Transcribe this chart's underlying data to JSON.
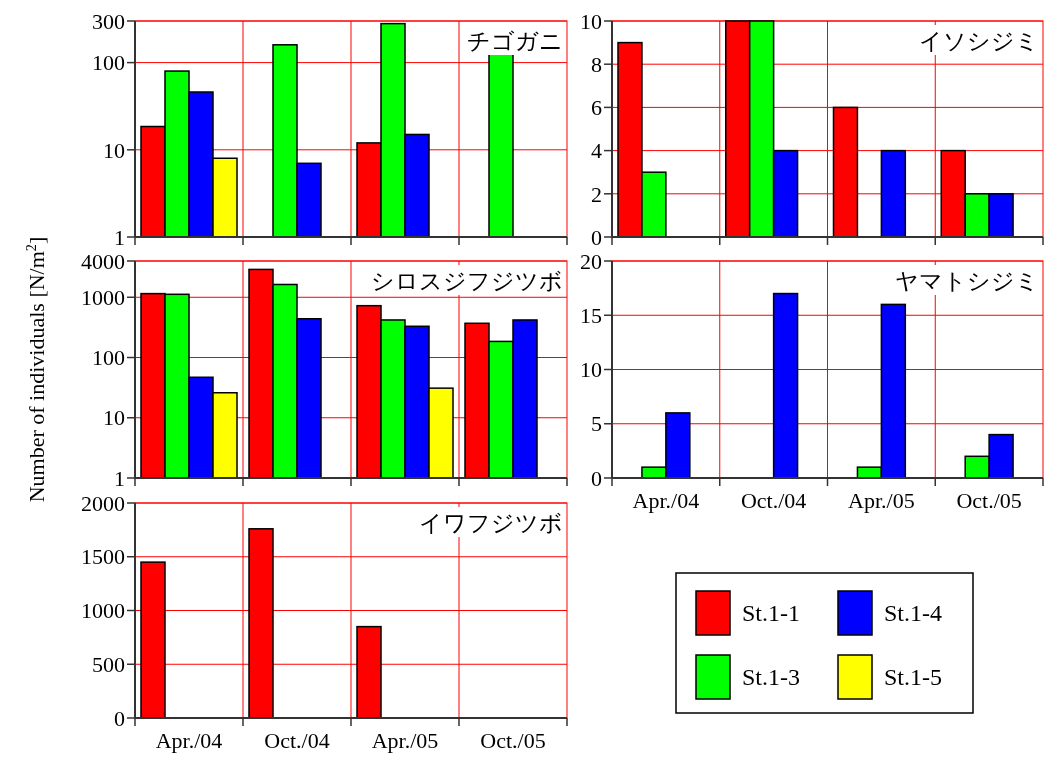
{
  "chart_data": [
    {
      "type": "bar",
      "title": "チゴガニ",
      "categories": [
        null,
        null,
        null,
        null
      ],
      "log": true,
      "ylim": [
        1,
        300
      ],
      "yticks": [
        1,
        10,
        100,
        300
      ],
      "grid": true,
      "tick_labels": "y",
      "series": [
        {
          "color": "#ff0000",
          "values": [
            18.5,
            null,
            12,
            null
          ]
        },
        {
          "color": "#00ff00",
          "values": [
            80,
            160,
            280,
            125
          ]
        },
        {
          "color": "#0000ff",
          "values": [
            46,
            7,
            15,
            null
          ]
        },
        {
          "color": "#ffff00",
          "values": [
            8,
            null,
            null,
            null
          ]
        }
      ]
    },
    {
      "type": "bar",
      "title": "イソシジミ",
      "categories": [
        null,
        null,
        null,
        null
      ],
      "ylim": [
        0,
        10
      ],
      "yticks": [
        0,
        2,
        4,
        6,
        8,
        10
      ],
      "grid": true,
      "tick_labels": "y",
      "series": [
        {
          "color": "#ff0000",
          "values": [
            9,
            10,
            6,
            4
          ]
        },
        {
          "color": "#00ff00",
          "values": [
            3,
            10,
            0,
            2
          ]
        },
        {
          "color": "#0000ff",
          "values": [
            0,
            4,
            4,
            2
          ]
        },
        {
          "color": "#ffff00",
          "values": [
            0,
            0,
            0,
            0
          ]
        }
      ]
    },
    {
      "type": "bar",
      "title": "シロスジフジツボ",
      "ylabel": "Number of individuals [N/m$^{2}$]",
      "categories": [
        null,
        null,
        null,
        null
      ],
      "log": true,
      "ylim": [
        1,
        4000
      ],
      "yticks": [
        1,
        10,
        100,
        1000,
        4000
      ],
      "grid": true,
      "tick_labels": "y",
      "series": [
        {
          "color": "#ff0000",
          "values": [
            1150,
            2900,
            725,
            370
          ]
        },
        {
          "color": "#00ff00",
          "values": [
            1120,
            1630,
            420,
            185
          ]
        },
        {
          "color": "#0000ff",
          "values": [
            47,
            440,
            330,
            420
          ]
        },
        {
          "color": "#ffff00",
          "values": [
            26,
            null,
            31,
            null
          ]
        }
      ]
    },
    {
      "type": "bar",
      "title": "ヤマトシジミ",
      "categories": [
        "Apr./04",
        "Oct./04",
        "Apr./05",
        "Oct./05"
      ],
      "ylim": [
        0,
        20
      ],
      "yticks": [
        0,
        5,
        10,
        15,
        20
      ],
      "grid": true,
      "series": [
        {
          "color": "#ff0000",
          "values": [
            0,
            0,
            0,
            0
          ]
        },
        {
          "color": "#00ff00",
          "values": [
            1,
            0,
            1,
            2
          ]
        },
        {
          "color": "#0000ff",
          "values": [
            6,
            17,
            16,
            4
          ]
        },
        {
          "color": "#ffff00",
          "values": [
            0,
            0,
            0,
            0
          ]
        }
      ]
    },
    {
      "type": "bar",
      "title": "イワフジツボ",
      "categories": [
        "Apr./04",
        "Oct./04",
        "Apr./05",
        "Oct./05"
      ],
      "ylim": [
        0,
        2000
      ],
      "yticks": [
        0,
        500,
        1000,
        1500,
        2000
      ],
      "grid": true,
      "legend": "right",
      "series": [
        {
          "name": "St.1-1",
          "color": "#ff0000",
          "values": [
            1450,
            1760,
            850,
            0
          ]
        },
        {
          "name": "St.1-3",
          "color": "#00ff00",
          "values": [
            0,
            0,
            0,
            0
          ]
        },
        {
          "name": "St.1-4",
          "color": "#0000ff",
          "values": [
            0,
            0,
            0,
            0
          ]
        },
        {
          "name": "St.1-5",
          "color": "#ffff00",
          "values": [
            0,
            0,
            0,
            0
          ]
        }
      ]
    }
  ]
}
